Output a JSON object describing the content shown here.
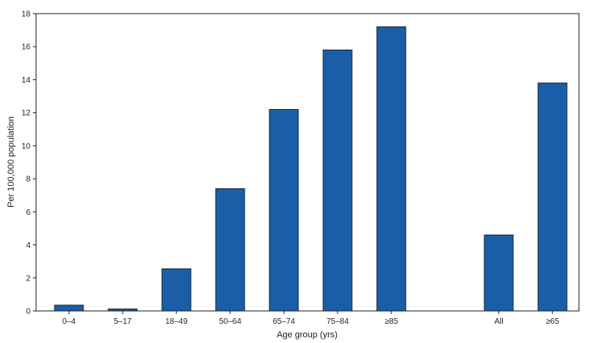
{
  "chart_data": {
    "type": "bar",
    "categories": [
      "0–4",
      "5–17",
      "18–49",
      "50–64",
      "65–74",
      "75–84",
      "≥85",
      "All",
      "≥65"
    ],
    "values": [
      0.35,
      0.12,
      2.55,
      7.4,
      12.2,
      15.8,
      17.2,
      4.6,
      13.8
    ],
    "xlabel": "Age group (yrs)",
    "ylabel": "Per 100,000 population",
    "ylim": [
      0,
      18
    ],
    "yticks": [
      0,
      2,
      4,
      6,
      8,
      10,
      12,
      14,
      16,
      18
    ],
    "grid": false,
    "bar_color": "#1a5ea8",
    "bar_edge_color": "#1b2a3a"
  }
}
